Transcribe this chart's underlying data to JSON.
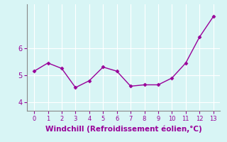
{
  "x": [
    0,
    1,
    2,
    3,
    4,
    5,
    6,
    7,
    8,
    9,
    10,
    11,
    12,
    13
  ],
  "y": [
    5.15,
    5.45,
    5.25,
    4.55,
    4.8,
    5.3,
    5.15,
    4.6,
    4.65,
    4.65,
    4.9,
    5.45,
    6.4,
    7.15
  ],
  "line_color": "#990099",
  "marker": "D",
  "marker_size": 2.5,
  "xlabel": "Windchill (Refroidissement éolien,°C)",
  "xlabel_fontsize": 7.5,
  "xticks": [
    0,
    1,
    2,
    3,
    4,
    5,
    6,
    7,
    8,
    9,
    10,
    11,
    12,
    13
  ],
  "yticks": [
    4,
    5,
    6
  ],
  "ylim": [
    3.7,
    7.6
  ],
  "xlim": [
    -0.5,
    13.5
  ],
  "bg_color": "#d8f5f5",
  "grid_color": "#b0e0e0",
  "spine_color": "#888888",
  "tick_color": "#990099",
  "label_color": "#990099",
  "linewidth": 1.0
}
